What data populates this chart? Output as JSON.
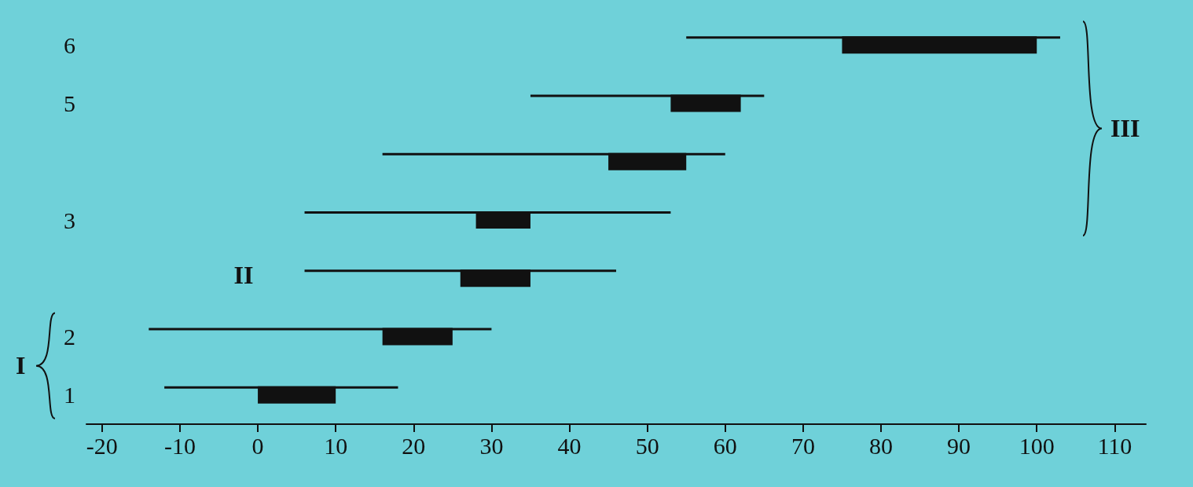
{
  "chart_data": {
    "type": "bar",
    "orientation": "horizontal",
    "categories": [
      "6",
      "5",
      null,
      "3",
      null,
      "2",
      "1"
    ],
    "series": [
      {
        "color": "#111111",
        "base": [
          55,
          35,
          16,
          6,
          6,
          -14,
          -12
        ],
        "values": [
          48,
          30,
          44,
          47,
          40,
          44,
          30
        ]
      },
      {
        "color": "#111111",
        "base": [
          75,
          53,
          45,
          28,
          26,
          16,
          0
        ],
        "values": [
          25,
          9,
          10,
          7,
          9,
          9,
          10
        ]
      }
    ],
    "xlim": [
      -22,
      114
    ],
    "xticks": [
      -20,
      -10,
      0,
      10,
      20,
      30,
      40,
      50,
      60,
      70,
      80,
      90,
      100,
      110
    ],
    "grid": false,
    "annotations": [
      "I",
      "II",
      "III"
    ]
  }
}
